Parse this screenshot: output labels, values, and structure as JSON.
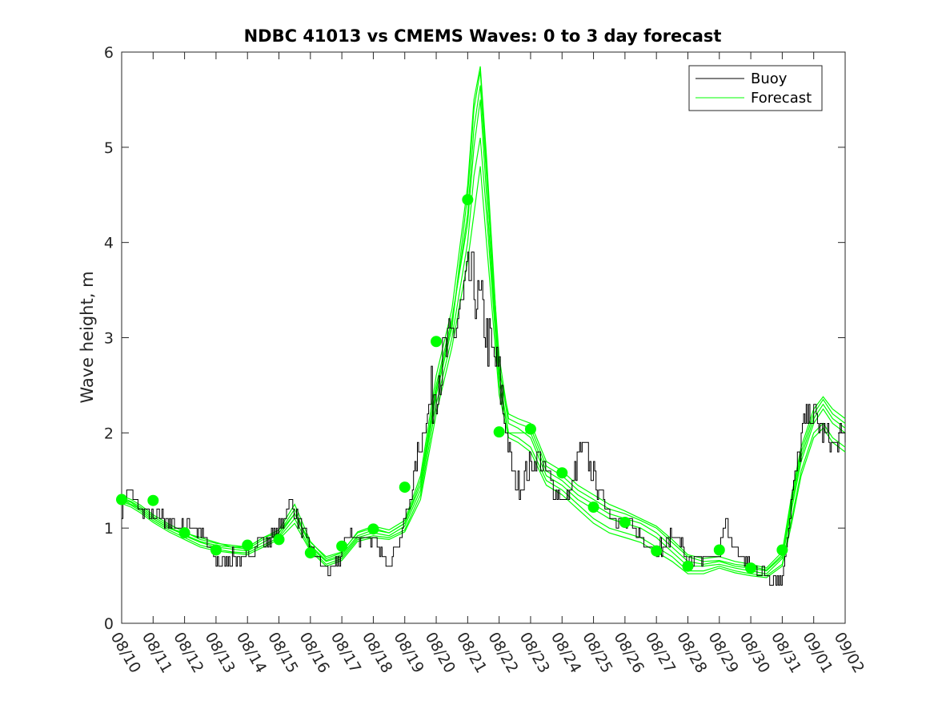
{
  "chart_data": {
    "type": "line",
    "title": "NDBC 41013 vs CMEMS Waves: 0 to 3 day forecast",
    "xlabel": "",
    "ylabel": "Wave height, m",
    "xlim": [
      0,
      23
    ],
    "ylim": [
      0,
      6
    ],
    "x_tick_labels": [
      "08/10",
      "08/11",
      "08/12",
      "08/13",
      "08/14",
      "08/15",
      "08/16",
      "08/17",
      "08/18",
      "08/19",
      "08/20",
      "08/21",
      "08/22",
      "08/23",
      "08/24",
      "08/25",
      "08/26",
      "08/27",
      "08/28",
      "08/29",
      "08/30",
      "08/31",
      "09/01",
      "09/02"
    ],
    "y_ticks": [
      0,
      1,
      2,
      3,
      4,
      5,
      6
    ],
    "legend": {
      "position": "top-right",
      "entries": [
        "Buoy",
        "Forecast"
      ]
    },
    "colors": {
      "buoy": "#000000",
      "forecast": "#00ff00"
    },
    "buoy_anchors": {
      "x": [
        0,
        0.1,
        0.25,
        0.4,
        0.6,
        0.8,
        1.0,
        1.2,
        1.5,
        1.8,
        2.0,
        2.3,
        2.6,
        2.9,
        3.2,
        3.5,
        3.8,
        4.1,
        4.4,
        4.6,
        4.9,
        5.1,
        5.3,
        5.5,
        5.75,
        6.0,
        6.2,
        6.4,
        6.6,
        6.8,
        7.0,
        7.2,
        7.5,
        7.8,
        8.0,
        8.2,
        8.4,
        8.6,
        8.8,
        9.0,
        9.2,
        9.4,
        9.6,
        9.8,
        10.0,
        10.2,
        10.4,
        10.6,
        10.8,
        10.9,
        11.0,
        11.1,
        11.2,
        11.35,
        11.5,
        11.7,
        11.9,
        12.0,
        12.1,
        12.3,
        12.5,
        12.7,
        12.9,
        13.1,
        13.3,
        13.5,
        13.7,
        13.9,
        14.0,
        14.1,
        14.3,
        14.5,
        14.7,
        15.0,
        15.3,
        15.6,
        15.9,
        16.1,
        16.3,
        16.6,
        16.8,
        17.0,
        17.2,
        17.4,
        17.6,
        17.8,
        18.0,
        18.3,
        18.6,
        18.85,
        19.0,
        19.2,
        19.4,
        19.7,
        20.0,
        20.3,
        20.6,
        20.8,
        20.9,
        21.0,
        21.1,
        21.3,
        21.5,
        21.7,
        21.9,
        22.0,
        22.2,
        22.4,
        22.6,
        22.8,
        23.0
      ],
      "y": [
        1.15,
        1.35,
        1.42,
        1.3,
        1.2,
        1.15,
        1.1,
        1.15,
        1.05,
        1.0,
        1.05,
        1.0,
        0.9,
        0.7,
        0.65,
        0.7,
        0.65,
        0.75,
        0.9,
        0.85,
        0.95,
        1.05,
        1.25,
        1.2,
        0.95,
        0.8,
        0.7,
        0.6,
        0.55,
        0.6,
        0.75,
        0.95,
        0.9,
        0.9,
        0.85,
        0.75,
        0.65,
        0.72,
        0.85,
        1.1,
        1.35,
        1.75,
        2.05,
        2.3,
        2.55,
        2.75,
        2.9,
        3.1,
        3.3,
        3.45,
        3.6,
        3.65,
        3.5,
        3.35,
        3.2,
        2.9,
        2.7,
        2.6,
        2.3,
        1.8,
        1.5,
        1.45,
        1.6,
        1.7,
        1.75,
        1.55,
        1.45,
        1.35,
        1.3,
        1.3,
        1.4,
        1.75,
        1.85,
        1.55,
        1.3,
        1.15,
        1.05,
        1.05,
        1.0,
        0.85,
        0.85,
        0.8,
        0.8,
        0.9,
        0.95,
        0.8,
        0.6,
        0.62,
        0.7,
        0.7,
        0.8,
        1.05,
        0.85,
        0.7,
        0.6,
        0.55,
        0.5,
        0.48,
        0.45,
        0.5,
        0.75,
        1.3,
        1.75,
        2.1,
        2.2,
        2.2,
        2.05,
        1.95,
        1.85,
        1.9,
        2.0
      ]
    },
    "forecast_runs": [
      {
        "x": [
          0,
          0.3,
          0.6,
          1.0,
          1.5,
          2.0,
          2.5,
          3.0,
          3.5,
          4.0,
          4.5,
          5.0,
          5.5,
          6.0,
          6.5,
          7.0,
          7.5,
          8.0,
          8.5,
          9.0,
          9.5,
          10.0,
          10.5,
          11.0,
          11.2,
          11.4,
          11.6,
          11.8,
          12.0,
          12.3,
          12.6,
          13.0,
          13.5,
          14.0,
          14.5,
          15.0,
          15.5,
          16.0,
          16.5,
          17.0,
          17.5,
          18.0,
          18.5,
          19.0,
          19.5,
          20.0,
          20.5,
          21.0,
          21.3,
          21.6,
          22.0,
          22.3,
          22.6,
          23.0
        ],
        "y": [
          1.3,
          1.25,
          1.2,
          1.1,
          1.0,
          0.95,
          0.9,
          0.85,
          0.8,
          0.8,
          0.9,
          0.95,
          1.15,
          0.85,
          0.7,
          0.75,
          0.95,
          1.0,
          0.95,
          1.05,
          1.5,
          2.5,
          3.2,
          4.2,
          5.0,
          5.5,
          4.5,
          3.5,
          2.6,
          2.0,
          2.0,
          2.0,
          1.6,
          1.5,
          1.35,
          1.25,
          1.15,
          1.1,
          1.05,
          0.95,
          0.8,
          0.65,
          0.62,
          0.65,
          0.6,
          0.58,
          0.55,
          0.7,
          1.3,
          1.8,
          2.2,
          2.35,
          2.2,
          2.1
        ]
      },
      {
        "x": [
          0,
          0.3,
          0.6,
          1.0,
          1.5,
          2.0,
          2.5,
          3.0,
          3.5,
          4.0,
          4.5,
          5.0,
          5.5,
          6.0,
          6.5,
          7.0,
          7.5,
          8.0,
          8.5,
          9.0,
          9.5,
          10.0,
          10.5,
          11.0,
          11.2,
          11.4,
          11.6,
          11.8,
          12.0,
          12.3,
          12.6,
          13.0,
          13.5,
          14.0,
          14.5,
          15.0,
          15.5,
          16.0,
          16.5,
          17.0,
          17.5,
          18.0,
          18.5,
          19.0,
          19.5,
          20.0,
          20.5,
          21.0,
          21.3,
          21.6,
          22.0,
          22.3,
          22.6,
          23.0
        ],
        "y": [
          1.32,
          1.28,
          1.22,
          1.12,
          1.02,
          0.92,
          0.85,
          0.8,
          0.78,
          0.76,
          0.85,
          0.95,
          1.2,
          0.8,
          0.65,
          0.7,
          0.9,
          0.95,
          0.92,
          1.02,
          1.4,
          2.4,
          3.1,
          4.5,
          5.4,
          5.8,
          4.8,
          3.6,
          2.7,
          2.1,
          2.05,
          1.95,
          1.55,
          1.45,
          1.3,
          1.2,
          1.1,
          1.05,
          1.0,
          0.9,
          0.75,
          0.6,
          0.6,
          0.62,
          0.58,
          0.55,
          0.52,
          0.68,
          1.2,
          1.7,
          2.1,
          2.25,
          2.1,
          2.0
        ]
      },
      {
        "x": [
          0,
          0.3,
          0.6,
          1.0,
          1.5,
          2.0,
          2.5,
          3.0,
          3.5,
          4.0,
          4.5,
          5.0,
          5.5,
          6.0,
          6.5,
          7.0,
          7.5,
          8.0,
          8.5,
          9.0,
          9.5,
          10.0,
          10.5,
          11.0,
          11.2,
          11.4,
          11.6,
          11.8,
          12.0,
          12.3,
          12.6,
          13.0,
          13.5,
          14.0,
          14.5,
          15.0,
          15.5,
          16.0,
          16.5,
          17.0,
          17.5,
          18.0,
          18.5,
          19.0,
          19.5,
          20.0,
          20.5,
          21.0,
          21.3,
          21.6,
          22.0,
          22.3,
          22.6,
          23.0
        ],
        "y": [
          1.28,
          1.24,
          1.18,
          1.08,
          0.98,
          0.9,
          0.82,
          0.78,
          0.75,
          0.74,
          0.82,
          0.9,
          1.1,
          0.78,
          0.62,
          0.68,
          0.88,
          0.92,
          0.9,
          0.98,
          1.35,
          2.3,
          3.0,
          4.0,
          4.7,
          5.1,
          4.3,
          3.4,
          2.5,
          2.0,
          1.95,
          1.85,
          1.5,
          1.4,
          1.25,
          1.1,
          1.0,
          0.95,
          0.9,
          0.8,
          0.7,
          0.55,
          0.55,
          0.6,
          0.55,
          0.52,
          0.5,
          0.62,
          1.1,
          1.6,
          2.0,
          2.1,
          1.95,
          1.85
        ]
      },
      {
        "x": [
          0,
          0.3,
          0.6,
          1.0,
          1.5,
          2.0,
          2.5,
          3.0,
          3.5,
          4.0,
          4.5,
          5.0,
          5.5,
          6.0,
          6.5,
          7.0,
          7.5,
          8.0,
          8.5,
          9.0,
          9.5,
          10.0,
          10.5,
          11.0,
          11.2,
          11.4,
          11.6,
          11.8,
          12.0,
          12.3,
          12.6,
          13.0,
          13.5,
          14.0,
          14.5,
          15.0,
          15.5,
          16.0,
          16.5,
          17.0,
          17.5,
          18.0,
          18.5,
          19.0,
          19.5,
          20.0,
          20.5,
          21.0,
          21.3,
          21.6,
          22.0,
          22.3,
          22.6,
          23.0
        ],
        "y": [
          1.3,
          1.27,
          1.2,
          1.1,
          1.0,
          0.93,
          0.86,
          0.82,
          0.8,
          0.78,
          0.88,
          0.92,
          1.15,
          0.82,
          0.66,
          0.72,
          0.92,
          0.98,
          0.95,
          1.05,
          1.45,
          2.45,
          3.15,
          4.3,
          5.2,
          5.65,
          4.7,
          3.7,
          2.8,
          2.15,
          2.1,
          2.05,
          1.65,
          1.55,
          1.4,
          1.3,
          1.2,
          1.15,
          1.08,
          1.0,
          0.85,
          0.7,
          0.65,
          0.66,
          0.62,
          0.6,
          0.56,
          0.72,
          1.25,
          1.75,
          2.15,
          2.3,
          2.15,
          2.05
        ]
      },
      {
        "x": [
          0,
          0.3,
          0.6,
          1.0,
          1.5,
          2.0,
          2.5,
          3.0,
          3.5,
          4.0,
          4.5,
          5.0,
          5.5,
          6.0,
          6.5,
          7.0,
          7.5,
          8.0,
          8.5,
          9.0,
          9.5,
          10.0,
          10.5,
          11.0,
          11.2,
          11.4,
          11.6,
          11.8,
          12.0,
          12.3,
          12.6,
          13.0,
          13.5,
          14.0,
          14.5,
          15.0,
          15.5,
          16.0,
          16.5,
          17.0,
          17.5,
          18.0,
          18.5,
          19.0,
          19.5,
          20.0,
          20.5,
          21.0,
          21.3,
          21.6,
          22.0,
          22.3,
          22.6,
          23.0
        ],
        "y": [
          1.26,
          1.22,
          1.16,
          1.06,
          0.96,
          0.88,
          0.8,
          0.76,
          0.74,
          0.72,
          0.8,
          0.88,
          1.05,
          0.76,
          0.6,
          0.66,
          0.86,
          0.9,
          0.88,
          0.96,
          1.3,
          2.2,
          2.9,
          3.8,
          4.3,
          4.8,
          4.0,
          3.2,
          2.4,
          1.95,
          1.9,
          1.8,
          1.45,
          1.35,
          1.2,
          1.05,
          0.95,
          0.9,
          0.85,
          0.75,
          0.65,
          0.52,
          0.52,
          0.58,
          0.53,
          0.5,
          0.48,
          0.6,
          1.05,
          1.55,
          1.95,
          2.05,
          1.9,
          1.8
        ]
      },
      {
        "x": [
          0,
          0.3,
          0.6,
          1.0,
          1.5,
          2.0,
          2.5,
          3.0,
          3.5,
          4.0,
          4.5,
          5.0,
          5.5,
          6.0,
          6.5,
          7.0,
          7.5,
          8.0,
          8.5,
          9.0,
          9.5,
          10.0,
          10.5,
          11.0,
          11.2,
          11.4,
          11.6,
          11.8,
          12.0,
          12.3,
          12.6,
          13.0,
          13.5,
          14.0,
          14.5,
          15.0,
          15.5,
          16.0,
          16.5,
          17.0,
          17.5,
          18.0,
          18.5,
          19.0,
          19.5,
          20.0,
          20.5,
          21.0,
          21.3,
          21.6,
          22.0,
          22.3,
          22.6,
          23.0
        ],
        "y": [
          1.34,
          1.3,
          1.24,
          1.14,
          1.04,
          0.96,
          0.88,
          0.84,
          0.82,
          0.8,
          0.9,
          0.98,
          1.25,
          0.86,
          0.68,
          0.74,
          0.96,
          1.02,
          0.98,
          1.08,
          1.55,
          2.6,
          3.3,
          4.6,
          5.5,
          5.85,
          4.9,
          3.8,
          2.65,
          2.2,
          2.15,
          2.1,
          1.7,
          1.6,
          1.45,
          1.35,
          1.25,
          1.18,
          1.1,
          1.02,
          0.88,
          0.72,
          0.68,
          0.7,
          0.65,
          0.62,
          0.58,
          0.75,
          1.35,
          1.85,
          2.25,
          2.38,
          2.25,
          2.15
        ]
      }
    ],
    "forecast_markers": {
      "x": [
        0,
        1,
        2,
        3,
        4,
        5,
        6,
        7,
        8,
        9,
        10,
        11,
        12,
        13,
        14,
        15,
        16,
        17,
        18,
        19,
        20,
        21
      ],
      "y": [
        1.3,
        1.29,
        0.95,
        0.77,
        0.82,
        0.88,
        0.74,
        0.81,
        0.99,
        1.43,
        2.96,
        4.45,
        2.01,
        2.04,
        1.58,
        1.22,
        1.06,
        0.76,
        0.6,
        0.77,
        0.58,
        0.77
      ]
    }
  }
}
